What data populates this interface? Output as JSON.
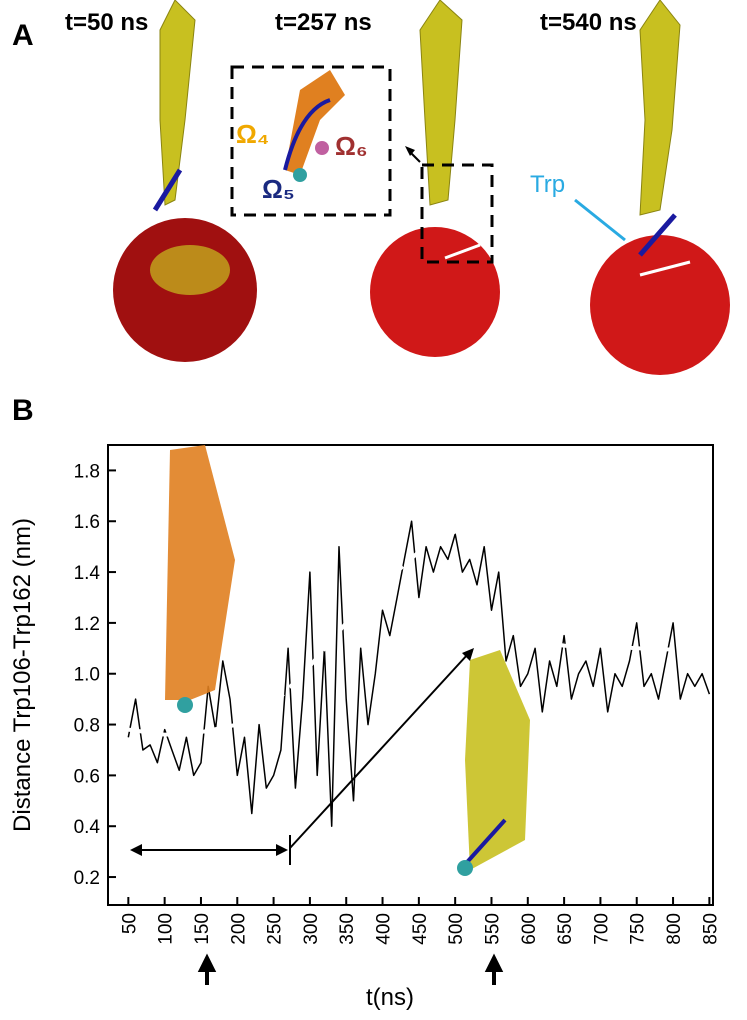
{
  "panel_a": {
    "label": "A",
    "times": [
      "t=50 ns",
      "t=257 ns",
      "t=540 ns"
    ],
    "annotations": [
      "Ω₄",
      "Ω₆",
      "Ω₅",
      "Trp"
    ]
  },
  "chart_data": {
    "type": "line",
    "label": "B",
    "xlabel": "t(ns)",
    "ylabel": "Distance Trp106-Trp162 (nm)",
    "xlim": [
      22,
      855
    ],
    "ylim": [
      0.09,
      1.9
    ],
    "xticks": [
      50,
      100,
      150,
      200,
      250,
      300,
      350,
      400,
      450,
      500,
      550,
      600,
      650,
      700,
      750,
      800,
      850
    ],
    "yticks": [
      0.2,
      0.4,
      0.6,
      0.8,
      {
        "value": 1,
        "label": "1.0"
      },
      1.2,
      1.4,
      1.6,
      1.8
    ],
    "x": [
      50,
      60,
      70,
      80,
      90,
      100,
      110,
      120,
      130,
      140,
      150,
      160,
      170,
      180,
      190,
      200,
      210,
      220,
      230,
      240,
      250,
      260,
      270,
      280,
      290,
      300,
      310,
      320,
      330,
      340,
      350,
      360,
      370,
      380,
      390,
      400,
      410,
      420,
      430,
      440,
      450,
      460,
      470,
      480,
      490,
      500,
      510,
      520,
      530,
      540,
      550,
      560,
      570,
      580,
      590,
      600,
      610,
      620,
      630,
      640,
      650,
      660,
      670,
      680,
      690,
      700,
      710,
      720,
      730,
      740,
      750,
      760,
      770,
      780,
      790,
      800,
      810,
      820,
      830,
      840,
      850
    ],
    "series": [
      {
        "color": "#000000",
        "values": [
          0.75,
          0.9,
          0.7,
          0.72,
          0.65,
          0.78,
          0.7,
          0.62,
          0.75,
          0.6,
          0.65,
          0.95,
          0.78,
          1.05,
          0.9,
          0.6,
          0.75,
          0.45,
          0.8,
          0.55,
          0.6,
          0.7,
          1.1,
          0.55,
          0.9,
          1.4,
          0.6,
          1.1,
          0.4,
          1.5,
          0.9,
          0.5,
          1.1,
          0.8,
          1.0,
          1.25,
          1.15,
          1.3,
          1.45,
          1.6,
          1.3,
          1.5,
          1.4,
          1.5,
          1.45,
          1.55,
          1.4,
          1.45,
          1.35,
          1.5,
          1.25,
          1.4,
          1.05,
          1.15,
          0.95,
          1.0,
          1.1,
          0.85,
          1.05,
          0.95,
          1.15,
          0.9,
          1.0,
          1.05,
          0.95,
          1.1,
          0.85,
          1.0,
          0.95,
          1.05,
          1.2,
          0.95,
          1.0,
          0.9,
          1.05,
          1.2,
          0.9,
          1.0,
          0.95,
          1.0,
          0.92
        ]
      },
      {
        "color": "#ffffff",
        "dashed": true,
        "x": [
          50,
          100,
          150,
          200,
          250,
          300,
          350,
          400,
          450,
          500,
          530,
          560,
          600,
          650,
          700,
          750,
          850
        ],
        "values": [
          0.78,
          0.76,
          0.77,
          0.8,
          0.88,
          1.03,
          1.2,
          1.35,
          1.48,
          1.56,
          1.57,
          1.45,
          1.15,
          1.11,
          1.11,
          1.1,
          1.09
        ]
      }
    ]
  }
}
